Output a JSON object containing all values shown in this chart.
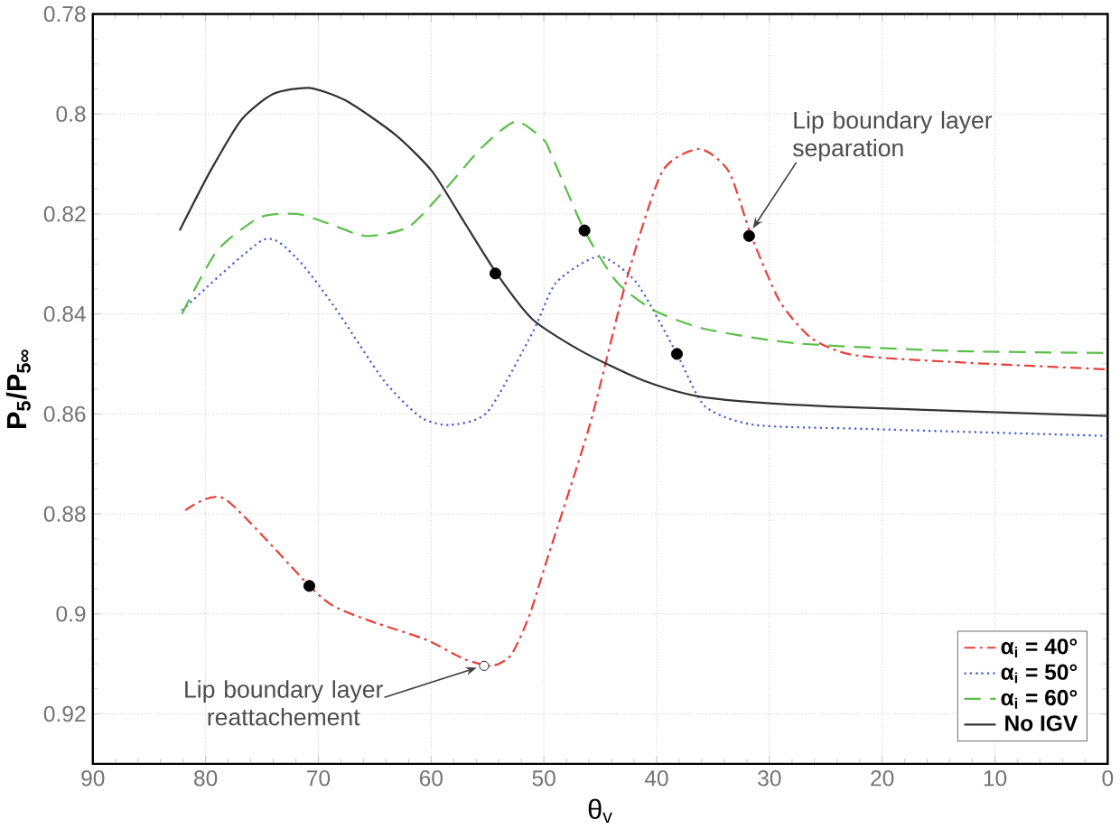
{
  "chart_data": {
    "type": "line",
    "xlabel": "θ$_{v}$",
    "ylabel": "P$_{5}$/P$_{5∞}$",
    "xlim": [
      90,
      0
    ],
    "ylim": [
      0.93,
      0.78
    ],
    "xticks": [
      90,
      80,
      70,
      60,
      50,
      40,
      30,
      20,
      10,
      0
    ],
    "yticks": [
      0.78,
      0.8,
      0.82,
      0.84,
      0.86,
      0.88,
      0.9,
      0.92
    ],
    "grid": true,
    "legend": "bottom right",
    "series": [
      {
        "name": "α$_{i}$ = 40°",
        "color": "#e8413c",
        "line_style": "dashdot",
        "x": [
          81.8,
          78.3,
          70.8,
          68.6,
          65.3,
          60.4,
          57.1,
          54.6,
          52.9,
          51.3,
          49.7,
          45.9,
          42.6,
          39.5,
          36.2,
          33.6,
          31.6,
          29.1,
          26.3,
          22.6,
          13.8,
          0
        ],
        "values": [
          0.8793,
          0.877,
          0.8944,
          0.8985,
          0.9015,
          0.9052,
          0.909,
          0.9104,
          0.9082,
          0.9004,
          0.889,
          0.862,
          0.8326,
          0.8115,
          0.807,
          0.8115,
          0.8244,
          0.8374,
          0.8448,
          0.8482,
          0.8496,
          0.8511
        ]
      },
      {
        "name": "α$_{i}$ = 50°",
        "color": "#4a5fd0",
        "line_style": "dotted",
        "x": [
          82.1,
          74.9,
          71.9,
          68.6,
          64.2,
          60.9,
          58.3,
          55,
          51,
          48.9,
          45.1,
          41.8,
          38.2,
          35.7,
          31.3,
          21.4,
          0
        ],
        "values": [
          0.8393,
          0.8252,
          0.8289,
          0.8385,
          0.8533,
          0.8607,
          0.8622,
          0.8596,
          0.8437,
          0.8337,
          0.8285,
          0.8337,
          0.848,
          0.8585,
          0.8622,
          0.863,
          0.8644
        ]
      },
      {
        "name": "α$_{i}$ = 60°",
        "color": "#5cbf4a",
        "line_style": "dashed",
        "x": [
          82.1,
          79,
          75.2,
          71.9,
          69.1,
          65.8,
          62,
          58.8,
          55.5,
          52.5,
          50,
          49.4,
          46.4,
          43.5,
          40.2,
          35.7,
          27.5,
          13.8,
          0
        ],
        "values": [
          0.84,
          0.8274,
          0.8207,
          0.82,
          0.8219,
          0.8244,
          0.8226,
          0.8152,
          0.8067,
          0.8015,
          0.8052,
          0.8078,
          0.8233,
          0.8337,
          0.8393,
          0.843,
          0.8459,
          0.8474,
          0.8478
        ]
      },
      {
        "name": "No IGV",
        "color": "#333333",
        "line_style": "solid",
        "x": [
          82.3,
          79.6,
          76.8,
          74,
          70.8,
          67.5,
          63.2,
          59.9,
          57.1,
          54.1,
          51,
          46.7,
          41.2,
          35.7,
          24.7,
          0
        ],
        "values": [
          0.8233,
          0.8115,
          0.8011,
          0.796,
          0.7948,
          0.7974,
          0.8041,
          0.8115,
          0.8215,
          0.8322,
          0.8411,
          0.8474,
          0.8533,
          0.8567,
          0.8585,
          0.8604
        ]
      },
      {
        "type": "scatter",
        "color": "#000000",
        "marker": "circle",
        "x": [
          70.8,
          54.3,
          46.4,
          38.2,
          31.8
        ],
        "values": [
          0.8944,
          0.8319,
          0.8233,
          0.848,
          0.8244
        ]
      }
    ],
    "annotations": [
      {
        "text": "Lip boundary layer separation",
        "x": 31.8,
        "y": 0.8244
      },
      {
        "text": "Lip boundary layer reattachement",
        "x": 55.3,
        "y": 0.9104
      }
    ]
  }
}
